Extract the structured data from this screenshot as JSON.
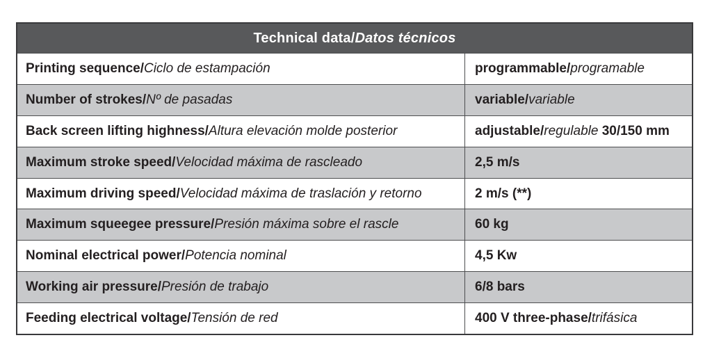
{
  "title": {
    "en": "Technical data/",
    "es": "Datos técnicos"
  },
  "table": {
    "rows": [
      {
        "label_en": "Printing sequence/",
        "label_es": "Ciclo de estampación",
        "value_en": "programmable/",
        "value_es": "programable",
        "value_suffix": ""
      },
      {
        "label_en": "Number of strokes/",
        "label_es": "Nº de pasadas",
        "value_en": "variable/",
        "value_es": "variable",
        "value_suffix": ""
      },
      {
        "label_en": "Back screen lifting highness/",
        "label_es": "Altura elevación molde posterior",
        "value_en": "adjustable/",
        "value_es": "regulable",
        "value_suffix": " 30/150 mm"
      },
      {
        "label_en": "Maximum stroke speed/",
        "label_es": "Velocidad máxima de rascleado",
        "value_en": "2,5 m/s",
        "value_es": "",
        "value_suffix": ""
      },
      {
        "label_en": "Maximum driving speed/",
        "label_es": "Velocidad máxima de traslación y retorno",
        "value_en": "2 m/s (**)",
        "value_es": "",
        "value_suffix": ""
      },
      {
        "label_en": "Maximum squeegee pressure/",
        "label_es": "Presión máxima sobre el rascle",
        "value_en": "60 kg",
        "value_es": "",
        "value_suffix": ""
      },
      {
        "label_en": "Nominal electrical power/",
        "label_es": "Potencia nominal",
        "value_en": "4,5 Kw",
        "value_es": "",
        "value_suffix": ""
      },
      {
        "label_en": "Working air pressure/",
        "label_es": "Presión de trabajo",
        "value_en": "6/8 bars",
        "value_es": "",
        "value_suffix": ""
      },
      {
        "label_en": "Feeding electrical voltage/",
        "label_es": "Tensión de red",
        "value_en": "400 V three-phase/",
        "value_es": "trifásica",
        "value_suffix": ""
      }
    ]
  },
  "colors": {
    "header_bg": "#58595b",
    "row_gray": "#c8c9cb",
    "row_white": "#ffffff",
    "text": "#231f20",
    "line": "#4c4d4f"
  }
}
